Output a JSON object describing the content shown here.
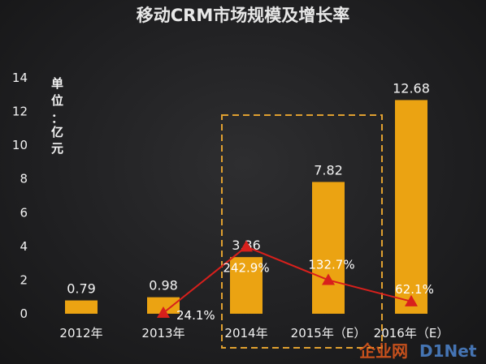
{
  "colors": {
    "bar": "#eba312",
    "line": "#d8201c",
    "highlight_box": "#e0a030",
    "text": "#f2f2f2"
  },
  "chart_data": {
    "type": "bar",
    "title": "移动CRM市场规模及增长率",
    "unit_label": [
      "单",
      "位",
      "：",
      "亿",
      "元"
    ],
    "categories": [
      "2012年",
      "2013年",
      "2014年",
      "2015年（E）",
      "2016年（E）"
    ],
    "series": [
      {
        "type": "bar",
        "values": [
          0.79,
          0.98,
          3.36,
          7.82,
          12.68
        ]
      },
      {
        "type": "line",
        "values": [
          null,
          24.1,
          242.9,
          132.7,
          62.1
        ],
        "axis": "secondary"
      }
    ],
    "bar_labels": [
      "0.79",
      "0.98",
      "3.36",
      "7.82",
      "12.68"
    ],
    "growth_labels": [
      "",
      "24.1%",
      "242.9%",
      "132.7%",
      "62.1%"
    ],
    "ylim": [
      0,
      14
    ],
    "yticks": [
      0,
      2,
      4,
      6,
      8,
      10,
      12,
      14
    ],
    "grid": false,
    "highlight": "dashed box around 2014年 column"
  },
  "watermark": {
    "text1": "企业网",
    "text2": "D1Net"
  }
}
